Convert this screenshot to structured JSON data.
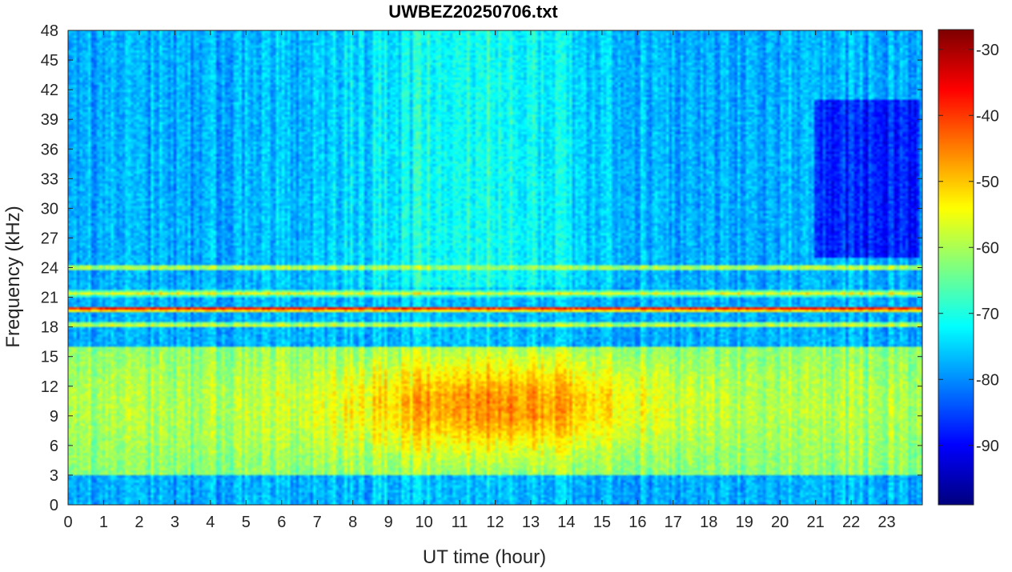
{
  "chart_data": {
    "type": "heatmap",
    "title": "UWBEZ20250706.txt",
    "xlabel": "UT time (hour)",
    "ylabel": "Frequency (kHz)",
    "xlim": [
      0,
      24
    ],
    "ylim": [
      0,
      48
    ],
    "x_ticks": [
      "0",
      "1",
      "2",
      "3",
      "4",
      "5",
      "6",
      "7",
      "8",
      "9",
      "10",
      "11",
      "12",
      "13",
      "14",
      "15",
      "16",
      "17",
      "18",
      "19",
      "20",
      "21",
      "22",
      "23"
    ],
    "y_ticks": [
      "0",
      "3",
      "6",
      "9",
      "12",
      "15",
      "18",
      "21",
      "24",
      "27",
      "30",
      "33",
      "36",
      "39",
      "42",
      "45",
      "48"
    ],
    "colorbar": {
      "colormap": "jet",
      "range": [
        -99,
        -27
      ],
      "ticks": [
        "-30",
        "-40",
        "-50",
        "-60",
        "-70",
        "-80",
        "-90"
      ]
    },
    "features": {
      "strong_lines_khz": [
        19.8,
        21.4,
        18.2,
        24.0
      ],
      "elevated_band_khz": [
        3,
        16
      ],
      "elevated_band_peak_hours": [
        8,
        16
      ],
      "elevated_band_peak_db": -45,
      "background_db": -78,
      "low_level_region_hours": [
        21,
        23.9
      ],
      "low_level_region_khz": [
        25,
        41
      ]
    }
  }
}
